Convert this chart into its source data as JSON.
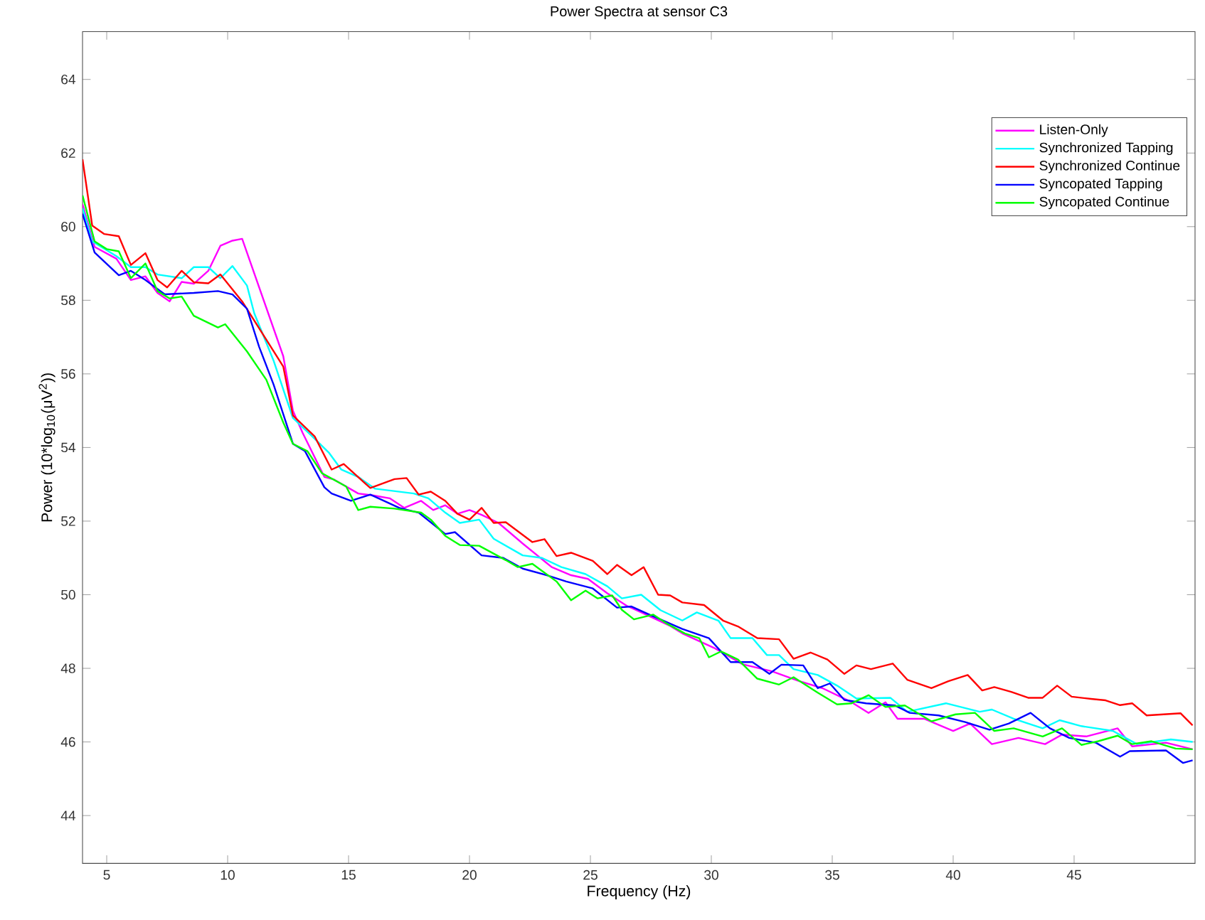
{
  "chart_data": {
    "type": "line",
    "title": "Power Spectra at sensor C3",
    "xlabel": "Frequency (Hz)",
    "ylabel": "Power (10*log$_{10}$(μV$^{2}$))",
    "xlim": [
      4,
      50
    ],
    "ylim": [
      42.7,
      65.3
    ],
    "xticks": [
      5,
      10,
      15,
      20,
      25,
      30,
      35,
      40,
      45
    ],
    "yticks": [
      44,
      46,
      48,
      50,
      52,
      54,
      56,
      58,
      60,
      62,
      64
    ],
    "legend": "top right",
    "line_style": "solid",
    "series": [
      {
        "name": "Listen-Only",
        "color": "#ff00ff",
        "x": [
          4.0,
          4.5,
          5.4,
          6.0,
          6.6,
          7.1,
          7.6,
          8.1,
          8.6,
          9.2,
          9.7,
          10.2,
          10.6,
          12.3,
          12.7,
          13.1,
          14.0,
          14.4,
          15.4,
          16.0,
          16.7,
          17.3,
          18.0,
          18.5,
          19.0,
          19.5,
          20.0,
          20.5,
          21.2,
          22.2,
          23.4,
          24.2,
          24.9,
          25.7,
          26.5,
          27.3,
          28.3,
          28.8,
          30.1,
          31.3,
          32.5,
          33.6,
          34.6,
          35.8,
          36.5,
          37.2,
          37.7,
          38.8,
          40.0,
          40.7,
          41.6,
          42.7,
          43.8,
          44.5,
          45.5,
          46.8,
          47.4,
          48.8,
          49.9
        ],
        "values": [
          60.61,
          59.45,
          59.13,
          58.55,
          58.65,
          58.2,
          57.97,
          58.5,
          58.45,
          58.8,
          59.48,
          59.62,
          59.67,
          56.48,
          55.0,
          54.4,
          53.2,
          53.13,
          52.75,
          52.7,
          52.62,
          52.36,
          52.55,
          52.3,
          52.43,
          52.2,
          52.3,
          52.17,
          51.95,
          51.39,
          50.75,
          50.53,
          50.43,
          50.04,
          49.7,
          49.46,
          49.15,
          48.95,
          48.56,
          48.11,
          47.92,
          47.66,
          47.46,
          47.08,
          46.79,
          47.08,
          46.63,
          46.63,
          46.3,
          46.5,
          45.94,
          46.11,
          45.94,
          46.2,
          46.15,
          46.37,
          45.88,
          45.98,
          45.8
        ]
      },
      {
        "name": "Synchronized Tapping",
        "color": "#00ffff",
        "x": [
          4.0,
          4.4,
          5.4,
          6.0,
          6.6,
          7.1,
          8.1,
          8.6,
          9.2,
          9.7,
          10.2,
          10.8,
          11.1,
          11.9,
          12.7,
          13.5,
          14.2,
          14.7,
          15.4,
          16.1,
          17.7,
          18.3,
          19.0,
          19.6,
          20.4,
          21.0,
          22.2,
          23.0,
          23.8,
          24.8,
          25.7,
          26.3,
          27.1,
          27.9,
          28.8,
          29.4,
          30.3,
          30.8,
          31.7,
          32.3,
          32.8,
          33.4,
          34.4,
          35.2,
          36.0,
          37.4,
          38.1,
          39.7,
          41.1,
          41.6,
          42.5,
          43.7,
          44.4,
          45.3,
          46.6,
          47.6,
          49.0,
          49.9
        ],
        "values": [
          60.5,
          59.6,
          59.2,
          58.9,
          58.9,
          58.7,
          58.6,
          58.9,
          58.9,
          58.6,
          58.93,
          58.4,
          57.65,
          56.36,
          54.8,
          54.3,
          53.85,
          53.4,
          53.2,
          52.88,
          52.75,
          52.62,
          52.23,
          51.95,
          52.04,
          51.52,
          51.07,
          51.0,
          50.75,
          50.56,
          50.23,
          49.9,
          50.0,
          49.58,
          49.3,
          49.52,
          49.29,
          48.82,
          48.82,
          48.36,
          48.36,
          47.98,
          47.82,
          47.53,
          47.18,
          47.2,
          46.82,
          47.05,
          46.82,
          46.88,
          46.63,
          46.37,
          46.59,
          46.43,
          46.3,
          45.94,
          46.07,
          46.0
        ]
      },
      {
        "name": "Synchronized Continue",
        "color": "#ff0000",
        "x": [
          4.0,
          4.4,
          4.9,
          5.5,
          6.0,
          6.6,
          7.1,
          7.5,
          8.1,
          8.6,
          9.2,
          9.7,
          10.6,
          12.3,
          12.7,
          13.6,
          14.3,
          14.8,
          15.9,
          16.9,
          17.4,
          17.9,
          18.4,
          19.0,
          19.5,
          20.0,
          20.5,
          21.0,
          21.5,
          22.6,
          23.1,
          23.6,
          24.2,
          25.1,
          25.7,
          26.1,
          26.7,
          27.2,
          27.8,
          28.3,
          28.8,
          29.7,
          30.5,
          31.1,
          31.9,
          32.8,
          33.4,
          34.1,
          34.8,
          35.5,
          36.0,
          36.6,
          37.5,
          38.1,
          39.1,
          39.8,
          40.6,
          41.2,
          41.7,
          42.4,
          43.1,
          43.7,
          44.3,
          44.9,
          45.7,
          46.3,
          46.9,
          47.4,
          48.0,
          49.4,
          49.9
        ],
        "values": [
          61.83,
          60.03,
          59.8,
          59.74,
          58.96,
          59.28,
          58.55,
          58.35,
          58.8,
          58.49,
          58.46,
          58.7,
          57.97,
          56.2,
          54.87,
          54.3,
          53.4,
          53.55,
          52.9,
          53.14,
          53.17,
          52.72,
          52.8,
          52.55,
          52.2,
          52.04,
          52.36,
          51.95,
          51.97,
          51.43,
          51.51,
          51.05,
          51.14,
          50.92,
          50.56,
          50.81,
          50.53,
          50.75,
          50.0,
          49.98,
          49.79,
          49.72,
          49.29,
          49.14,
          48.82,
          48.79,
          48.26,
          48.43,
          48.24,
          47.85,
          48.08,
          47.98,
          48.13,
          47.69,
          47.46,
          47.65,
          47.82,
          47.4,
          47.49,
          47.36,
          47.2,
          47.2,
          47.53,
          47.23,
          47.17,
          47.13,
          47.0,
          47.05,
          46.72,
          46.78,
          46.45
        ]
      },
      {
        "name": "Syncopated Tapping",
        "color": "#0000ff",
        "x": [
          4.0,
          4.5,
          5.5,
          6.0,
          6.6,
          7.4,
          8.6,
          9.6,
          10.2,
          10.8,
          11.3,
          11.9,
          12.7,
          13.2,
          14.0,
          14.3,
          15.1,
          15.9,
          17.1,
          17.9,
          19.0,
          19.4,
          20.5,
          21.4,
          22.2,
          23.2,
          24.0,
          25.1,
          26.1,
          26.7,
          27.4,
          28.8,
          29.9,
          30.8,
          31.7,
          32.4,
          32.9,
          33.8,
          34.4,
          34.9,
          35.5,
          36.4,
          37.6,
          38.2,
          39.4,
          40.5,
          41.5,
          42.3,
          43.2,
          44.0,
          44.8,
          45.9,
          46.9,
          47.3,
          48.8,
          49.5,
          49.9
        ],
        "values": [
          60.35,
          59.3,
          58.68,
          58.8,
          58.55,
          58.16,
          58.2,
          58.25,
          58.16,
          57.77,
          56.74,
          55.71,
          54.1,
          53.9,
          52.92,
          52.75,
          52.55,
          52.72,
          52.36,
          52.23,
          51.65,
          51.7,
          51.07,
          51.0,
          50.71,
          50.53,
          50.36,
          50.17,
          49.65,
          49.68,
          49.47,
          49.07,
          48.82,
          48.17,
          48.17,
          47.85,
          48.1,
          48.08,
          47.46,
          47.59,
          47.14,
          47.05,
          46.99,
          46.79,
          46.72,
          46.54,
          46.33,
          46.5,
          46.79,
          46.37,
          46.11,
          45.98,
          45.6,
          45.75,
          45.77,
          45.43,
          45.5
        ]
      },
      {
        "name": "Syncopated Continue",
        "color": "#00ff00",
        "x": [
          4.0,
          4.5,
          5.0,
          5.5,
          6.0,
          6.6,
          7.1,
          7.6,
          8.1,
          8.6,
          9.6,
          9.9,
          10.8,
          11.6,
          12.3,
          12.7,
          13.3,
          13.9,
          14.9,
          15.4,
          15.9,
          16.9,
          18.0,
          18.4,
          19.0,
          19.6,
          20.4,
          21.5,
          22.0,
          22.6,
          23.6,
          24.2,
          24.8,
          25.3,
          25.9,
          26.3,
          26.8,
          27.6,
          28.2,
          28.9,
          29.5,
          29.9,
          30.4,
          31.1,
          31.9,
          32.8,
          33.4,
          34.4,
          35.2,
          35.8,
          36.5,
          37.2,
          38.0,
          39.1,
          40.1,
          40.9,
          41.7,
          42.5,
          43.7,
          44.5,
          45.3,
          46.0,
          46.8,
          47.4,
          48.2,
          49.2,
          49.9
        ],
        "values": [
          60.85,
          59.6,
          59.39,
          59.33,
          58.6,
          59.0,
          58.25,
          58.05,
          58.1,
          57.58,
          57.26,
          57.35,
          56.61,
          55.84,
          54.68,
          54.1,
          53.9,
          53.3,
          52.94,
          52.3,
          52.39,
          52.34,
          52.23,
          52.04,
          51.6,
          51.35,
          51.33,
          50.94,
          50.75,
          50.84,
          50.36,
          49.85,
          50.11,
          49.9,
          49.98,
          49.59,
          49.33,
          49.46,
          49.2,
          48.95,
          48.82,
          48.3,
          48.46,
          48.24,
          47.72,
          47.56,
          47.76,
          47.34,
          47.02,
          47.05,
          47.27,
          46.95,
          46.99,
          46.56,
          46.75,
          46.79,
          46.3,
          46.37,
          46.15,
          46.37,
          45.92,
          46.02,
          46.17,
          45.94,
          46.02,
          45.82,
          45.8
        ]
      }
    ]
  }
}
